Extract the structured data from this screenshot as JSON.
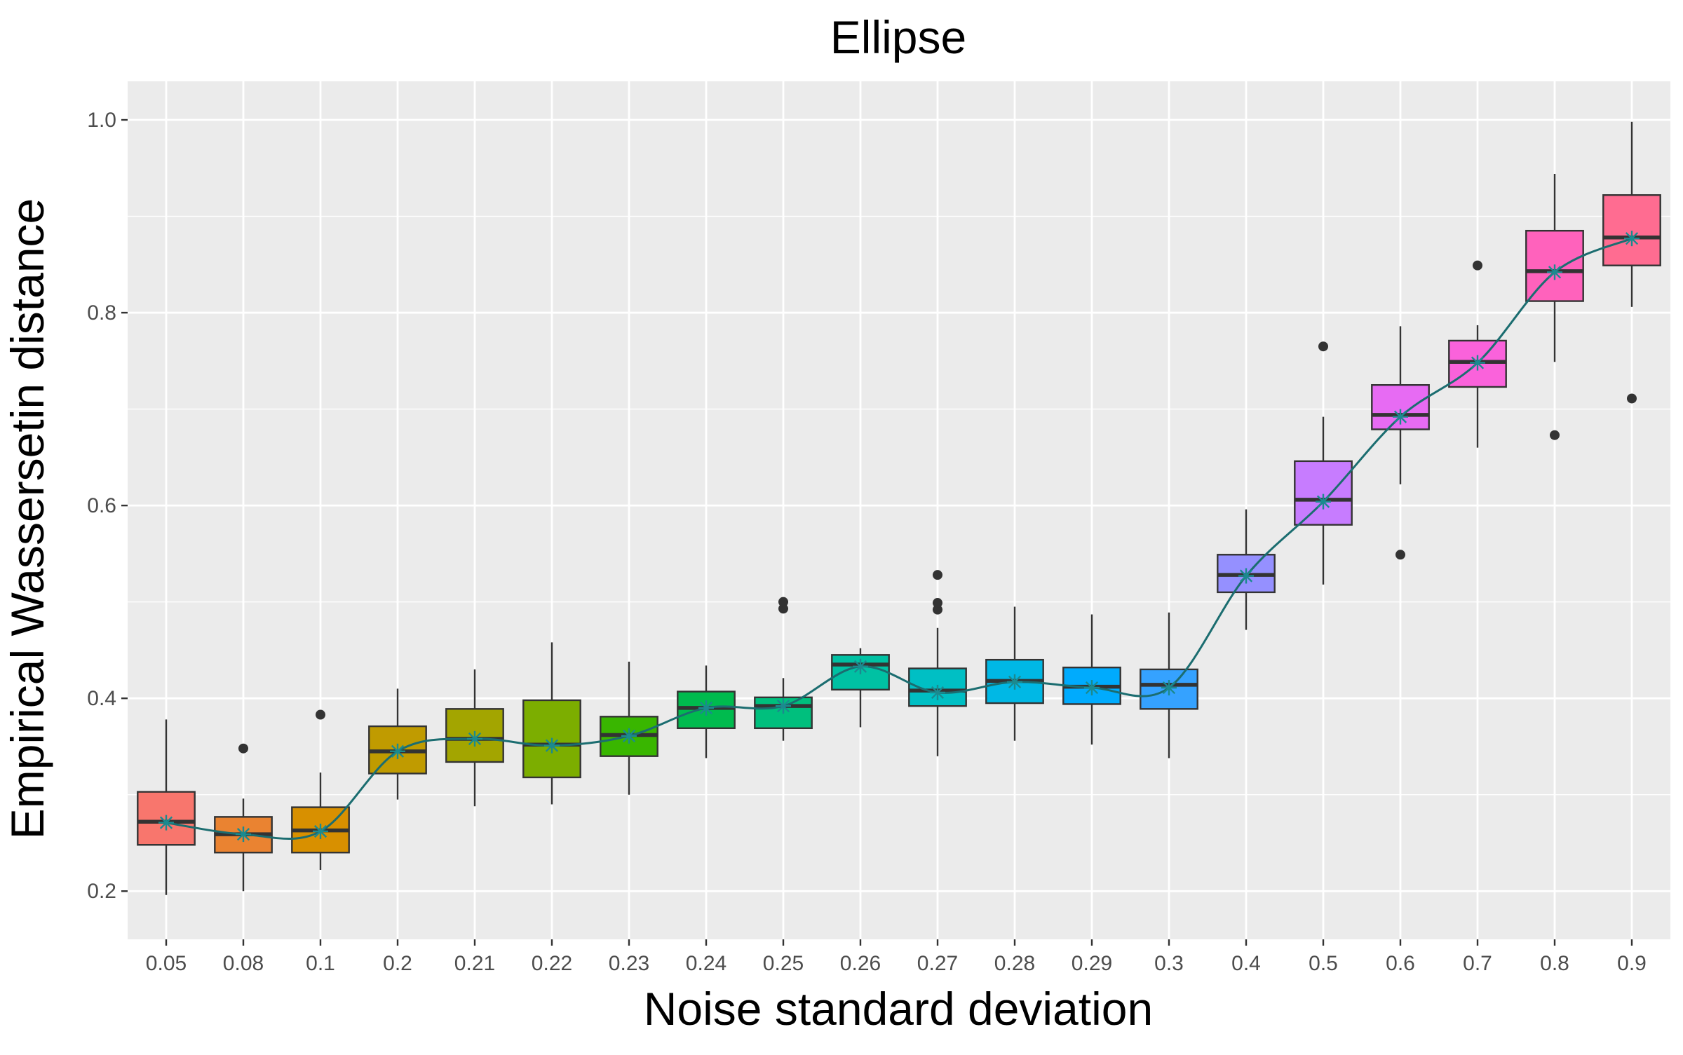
{
  "chart_data": {
    "type": "box",
    "title": "Ellipse",
    "xlabel": "Noise standard deviation",
    "ylabel": "Empirical Wassersetin distance",
    "ylim": [
      0.15,
      1.04
    ],
    "yticks": [
      0.2,
      0.4,
      0.6,
      0.8,
      1.0
    ],
    "ytick_labels": [
      "0.2",
      "0.4",
      "0.6",
      "0.8",
      "1.0"
    ],
    "grid": true,
    "legend": "none",
    "colors": {
      "panel_background": "#ebebeb",
      "grid": "#ffffff",
      "box_outline": "#333333",
      "mean_line": "#1b6d70",
      "mean_marker": "#1b8a8f"
    },
    "categories": [
      "0.05",
      "0.08",
      "0.1",
      "0.2",
      "0.21",
      "0.22",
      "0.23",
      "0.24",
      "0.25",
      "0.26",
      "0.27",
      "0.28",
      "0.29",
      "0.3",
      "0.4",
      "0.5",
      "0.6",
      "0.7",
      "0.8",
      "0.9"
    ],
    "boxes": [
      {
        "category": "0.05",
        "color": "#F8766D",
        "whisker_low": 0.196,
        "q1": 0.248,
        "median": 0.272,
        "q3": 0.303,
        "whisker_high": 0.378,
        "mean": 0.271,
        "outliers": []
      },
      {
        "category": "0.08",
        "color": "#EA8331",
        "whisker_low": 0.2,
        "q1": 0.24,
        "median": 0.259,
        "q3": 0.277,
        "whisker_high": 0.296,
        "mean": 0.259,
        "outliers": [
          0.348
        ]
      },
      {
        "category": "0.1",
        "color": "#D89000",
        "whisker_low": 0.222,
        "q1": 0.24,
        "median": 0.263,
        "q3": 0.287,
        "whisker_high": 0.323,
        "mean": 0.262,
        "outliers": [
          0.383
        ]
      },
      {
        "category": "0.2",
        "color": "#C09B00",
        "whisker_low": 0.295,
        "q1": 0.322,
        "median": 0.345,
        "q3": 0.371,
        "whisker_high": 0.41,
        "mean": 0.345,
        "outliers": []
      },
      {
        "category": "0.21",
        "color": "#A3A500",
        "whisker_low": 0.288,
        "q1": 0.334,
        "median": 0.358,
        "q3": 0.389,
        "whisker_high": 0.43,
        "mean": 0.358,
        "outliers": []
      },
      {
        "category": "0.22",
        "color": "#7CAE00",
        "whisker_low": 0.29,
        "q1": 0.318,
        "median": 0.352,
        "q3": 0.398,
        "whisker_high": 0.458,
        "mean": 0.351,
        "outliers": []
      },
      {
        "category": "0.23",
        "color": "#39B600",
        "whisker_low": 0.3,
        "q1": 0.34,
        "median": 0.362,
        "q3": 0.381,
        "whisker_high": 0.438,
        "mean": 0.361,
        "outliers": []
      },
      {
        "category": "0.24",
        "color": "#00BB4E",
        "whisker_low": 0.338,
        "q1": 0.369,
        "median": 0.39,
        "q3": 0.407,
        "whisker_high": 0.434,
        "mean": 0.39,
        "outliers": []
      },
      {
        "category": "0.25",
        "color": "#00BF7D",
        "whisker_low": 0.356,
        "q1": 0.369,
        "median": 0.392,
        "q3": 0.401,
        "whisker_high": 0.421,
        "mean": 0.392,
        "outliers": [
          0.493,
          0.5
        ]
      },
      {
        "category": "0.26",
        "color": "#00C1A3",
        "whisker_low": 0.37,
        "q1": 0.409,
        "median": 0.435,
        "q3": 0.445,
        "whisker_high": 0.452,
        "mean": 0.433,
        "outliers": []
      },
      {
        "category": "0.27",
        "color": "#00BFC4",
        "whisker_low": 0.34,
        "q1": 0.392,
        "median": 0.408,
        "q3": 0.431,
        "whisker_high": 0.473,
        "mean": 0.406,
        "outliers": [
          0.492,
          0.499,
          0.528
        ]
      },
      {
        "category": "0.28",
        "color": "#00B8E5",
        "whisker_low": 0.356,
        "q1": 0.395,
        "median": 0.418,
        "q3": 0.44,
        "whisker_high": 0.495,
        "mean": 0.417,
        "outliers": []
      },
      {
        "category": "0.29",
        "color": "#00ABFD",
        "whisker_low": 0.352,
        "q1": 0.394,
        "median": 0.412,
        "q3": 0.432,
        "whisker_high": 0.487,
        "mean": 0.411,
        "outliers": []
      },
      {
        "category": "0.3",
        "color": "#35A2FF",
        "whisker_low": 0.338,
        "q1": 0.389,
        "median": 0.414,
        "q3": 0.43,
        "whisker_high": 0.489,
        "mean": 0.411,
        "outliers": []
      },
      {
        "category": "0.4",
        "color": "#9590FF",
        "whisker_low": 0.471,
        "q1": 0.51,
        "median": 0.528,
        "q3": 0.549,
        "whisker_high": 0.596,
        "mean": 0.527,
        "outliers": []
      },
      {
        "category": "0.5",
        "color": "#C77CFF",
        "whisker_low": 0.518,
        "q1": 0.58,
        "median": 0.606,
        "q3": 0.646,
        "whisker_high": 0.692,
        "mean": 0.604,
        "outliers": [
          0.765
        ]
      },
      {
        "category": "0.6",
        "color": "#E76BF3",
        "whisker_low": 0.622,
        "q1": 0.679,
        "median": 0.694,
        "q3": 0.725,
        "whisker_high": 0.786,
        "mean": 0.692,
        "outliers": [
          0.549
        ]
      },
      {
        "category": "0.7",
        "color": "#FA62DB",
        "whisker_low": 0.66,
        "q1": 0.723,
        "median": 0.749,
        "q3": 0.771,
        "whisker_high": 0.787,
        "mean": 0.748,
        "outliers": [
          0.849
        ]
      },
      {
        "category": "0.8",
        "color": "#FF62BC",
        "whisker_low": 0.749,
        "q1": 0.812,
        "median": 0.843,
        "q3": 0.885,
        "whisker_high": 0.944,
        "mean": 0.842,
        "outliers": [
          0.673
        ]
      },
      {
        "category": "0.9",
        "color": "#FF6C91",
        "whisker_low": 0.806,
        "q1": 0.849,
        "median": 0.878,
        "q3": 0.922,
        "whisker_high": 0.998,
        "mean": 0.877,
        "outliers": [
          0.711
        ]
      }
    ]
  }
}
